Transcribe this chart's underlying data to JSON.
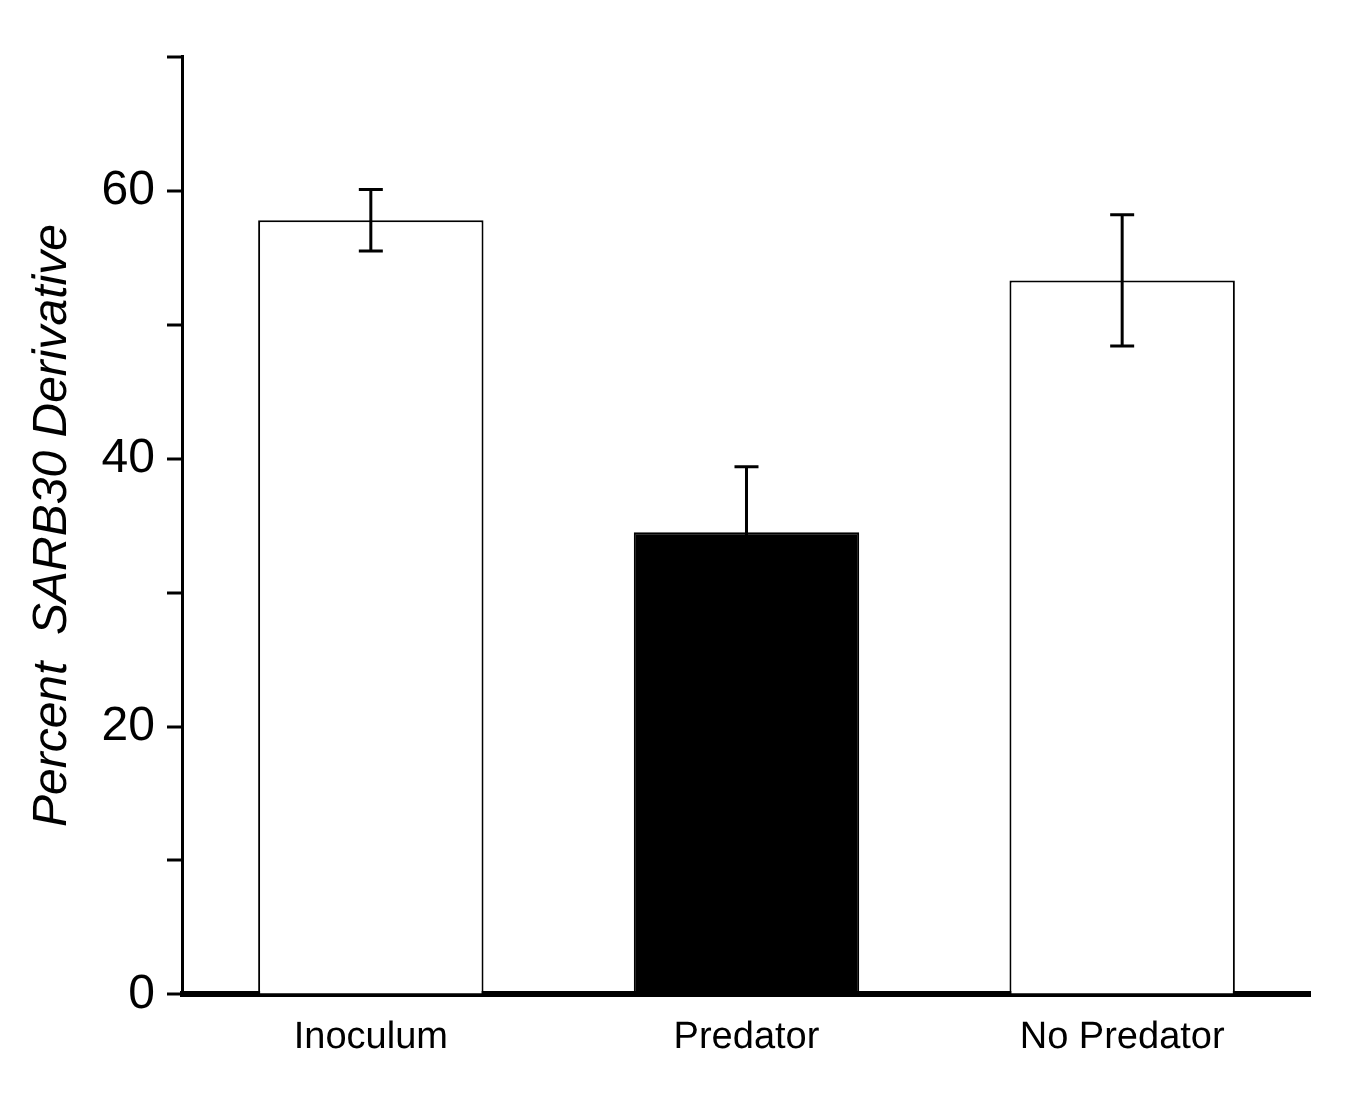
{
  "chart_data": {
    "type": "bar",
    "ylabel": "Percent  SARB30 Derivative",
    "categories": [
      "Inoculum",
      "Predator",
      "No Predator"
    ],
    "values": [
      57.8,
      34.5,
      53.3
    ],
    "colors": [
      "#ffffff",
      "#000000",
      "#ffffff"
    ],
    "errors": [
      2.3,
      4.9,
      4.9
    ],
    "ylim": [
      0,
      70
    ],
    "yticks": [
      0,
      {
        "value": 10,
        "label": null
      },
      20,
      {
        "value": 30,
        "label": null
      },
      40,
      {
        "value": 50,
        "label": null
      },
      60,
      {
        "value": 70,
        "label": null
      }
    ],
    "grid": false,
    "legend": false
  }
}
